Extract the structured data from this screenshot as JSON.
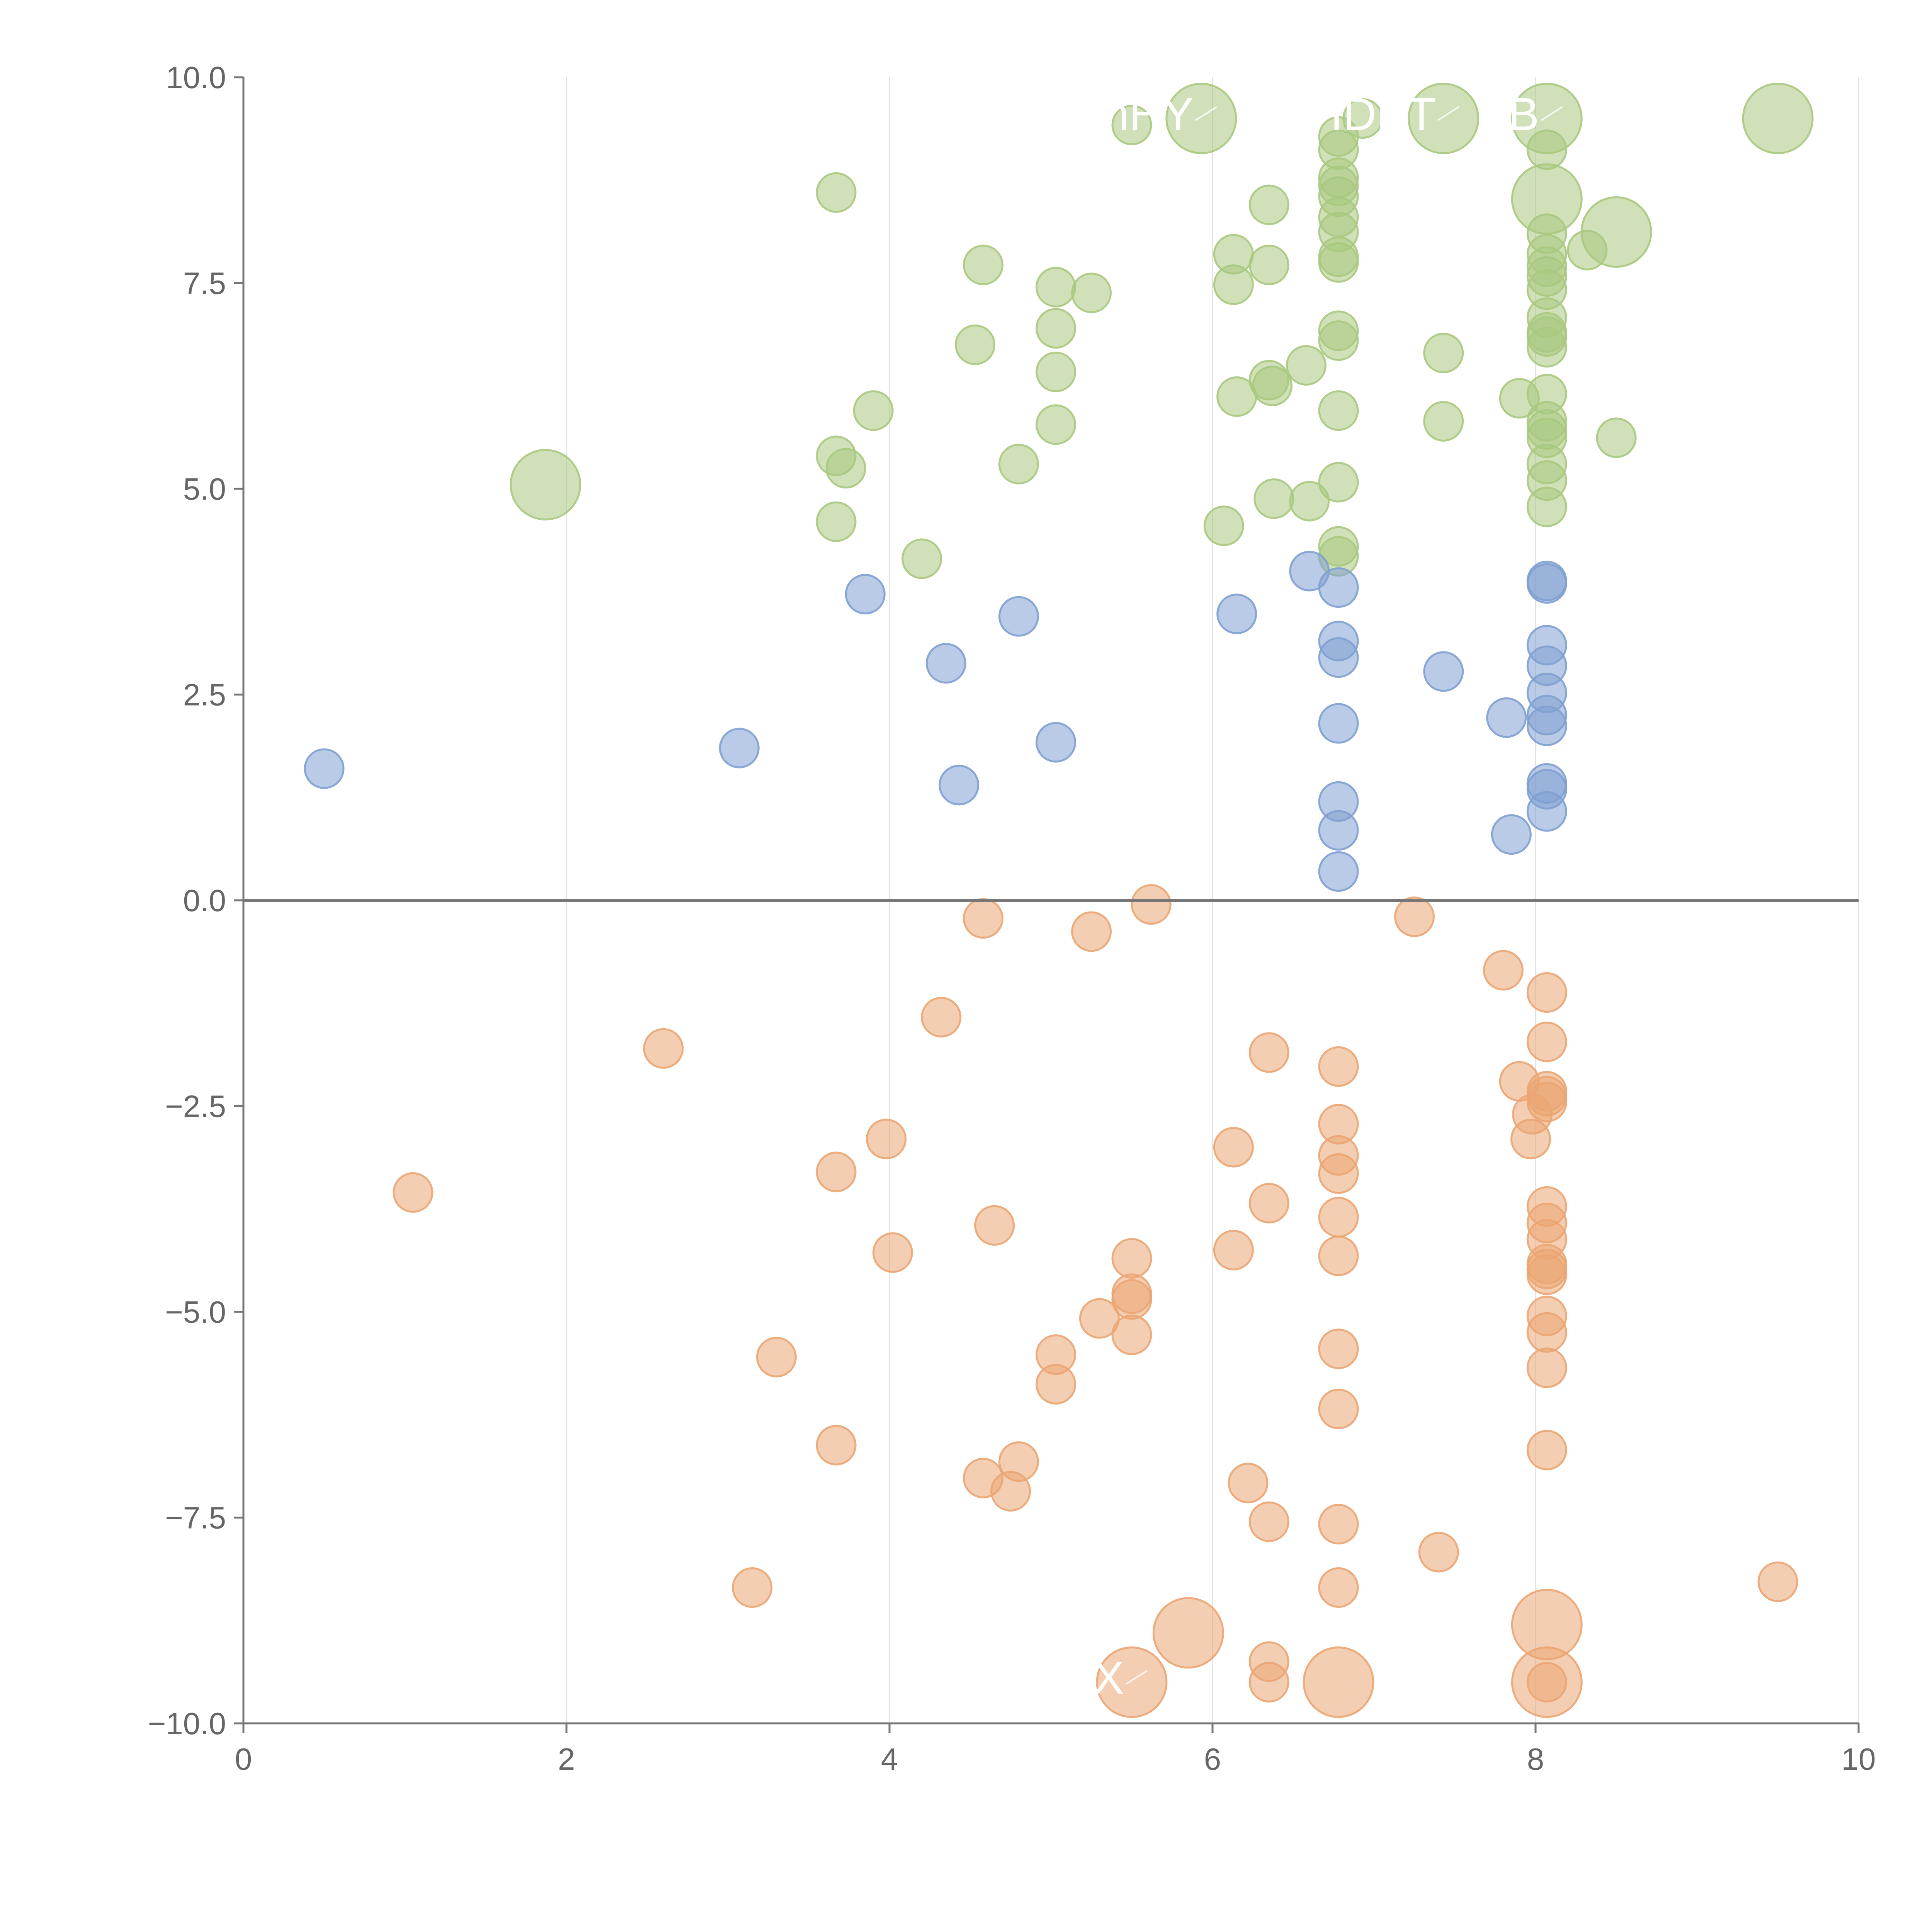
{
  "chart_data": {
    "type": "scatter",
    "title": "",
    "xlabel": "",
    "ylabel": "",
    "xlim": [
      0,
      10
    ],
    "ylim": [
      -10,
      10
    ],
    "x_ticks": [
      "0",
      "2",
      "4",
      "6",
      "8",
      "10"
    ],
    "y_ticks": [
      "10.0",
      "7.5",
      "5.0",
      "2.5",
      "0.0",
      "−2.5",
      "−5.0",
      "−7.5",
      "−10.0"
    ],
    "grid": "vertical lines at x ticks",
    "zero_line": true,
    "colors": {
      "green": "#a9c97f",
      "blue": "#7fa0d2",
      "orange": "#eba572"
    },
    "series": [
      {
        "color_key": "green",
        "points": [
          [
            1.87,
            5.05,
            2
          ],
          [
            3.67,
            8.6,
            1
          ],
          [
            3.67,
            5.4,
            1
          ],
          [
            3.73,
            5.25,
            1
          ],
          [
            3.67,
            4.6,
            1
          ],
          [
            3.9,
            5.95,
            1
          ],
          [
            4.2,
            4.15,
            1
          ],
          [
            4.53,
            6.75,
            1
          ],
          [
            4.58,
            7.72,
            1
          ],
          [
            4.8,
            5.3,
            1
          ],
          [
            5.03,
            7.45,
            1
          ],
          [
            5.03,
            6.95,
            1
          ],
          [
            5.03,
            6.42,
            1
          ],
          [
            5.03,
            5.78,
            1
          ],
          [
            5.25,
            7.38,
            1
          ],
          [
            5.5,
            9.42,
            1
          ],
          [
            5.93,
            9.5,
            2
          ],
          [
            6.07,
            4.55,
            1
          ],
          [
            6.13,
            7.85,
            1
          ],
          [
            6.13,
            7.48,
            1
          ],
          [
            6.15,
            6.12,
            1
          ],
          [
            6.35,
            8.45,
            1
          ],
          [
            6.35,
            7.72,
            1
          ],
          [
            6.35,
            6.32,
            1
          ],
          [
            6.37,
            6.25,
            1
          ],
          [
            6.38,
            4.88,
            1
          ],
          [
            6.58,
            6.5,
            1
          ],
          [
            6.6,
            4.85,
            1
          ],
          [
            6.78,
            9.28,
            1
          ],
          [
            6.78,
            9.12,
            1
          ],
          [
            6.78,
            8.78,
            1
          ],
          [
            6.78,
            8.68,
            1
          ],
          [
            6.78,
            8.55,
            1
          ],
          [
            6.78,
            8.3,
            1
          ],
          [
            6.78,
            8.12,
            1
          ],
          [
            6.78,
            7.82,
            1
          ],
          [
            6.78,
            7.75,
            1
          ],
          [
            6.78,
            6.92,
            1
          ],
          [
            6.78,
            6.8,
            1
          ],
          [
            6.78,
            5.95,
            1
          ],
          [
            6.78,
            5.08,
            1
          ],
          [
            6.78,
            4.3,
            1
          ],
          [
            6.78,
            4.18,
            1
          ],
          [
            6.93,
            9.5,
            1
          ],
          [
            7.43,
            9.5,
            2
          ],
          [
            7.43,
            6.65,
            1
          ],
          [
            7.43,
            5.82,
            1
          ],
          [
            7.9,
            6.1,
            1
          ],
          [
            8.07,
            9.5,
            2
          ],
          [
            8.07,
            9.12,
            1
          ],
          [
            8.07,
            8.52,
            2
          ],
          [
            8.07,
            8.1,
            1
          ],
          [
            8.07,
            7.85,
            1
          ],
          [
            8.07,
            7.7,
            1
          ],
          [
            8.07,
            7.58,
            1
          ],
          [
            8.07,
            7.42,
            1
          ],
          [
            8.07,
            7.08,
            1
          ],
          [
            8.07,
            6.9,
            1
          ],
          [
            8.07,
            6.85,
            1
          ],
          [
            8.07,
            6.72,
            1
          ],
          [
            8.07,
            6.15,
            1
          ],
          [
            8.07,
            5.82,
            1
          ],
          [
            8.07,
            5.72,
            1
          ],
          [
            8.07,
            5.62,
            1
          ],
          [
            8.07,
            5.3,
            1
          ],
          [
            8.07,
            5.1,
            1
          ],
          [
            8.07,
            4.78,
            1
          ],
          [
            8.32,
            7.9,
            1
          ],
          [
            8.5,
            8.12,
            2
          ],
          [
            8.5,
            5.62,
            1
          ],
          [
            9.5,
            9.5,
            2
          ]
        ]
      },
      {
        "color_key": "blue",
        "points": [
          [
            0.5,
            1.6,
            1
          ],
          [
            3.07,
            1.85,
            1
          ],
          [
            3.85,
            3.72,
            1
          ],
          [
            4.35,
            2.88,
            1
          ],
          [
            4.43,
            1.4,
            1
          ],
          [
            4.8,
            3.45,
            1
          ],
          [
            5.03,
            1.92,
            1
          ],
          [
            6.15,
            3.48,
            1
          ],
          [
            6.6,
            4.0,
            1
          ],
          [
            6.78,
            3.8,
            1
          ],
          [
            6.78,
            3.15,
            1
          ],
          [
            6.78,
            2.95,
            1
          ],
          [
            6.78,
            2.15,
            1
          ],
          [
            6.78,
            1.2,
            1
          ],
          [
            6.78,
            0.85,
            1
          ],
          [
            6.78,
            0.35,
            1
          ],
          [
            7.43,
            2.78,
            1
          ],
          [
            7.82,
            2.22,
            1
          ],
          [
            7.85,
            0.8,
            1
          ],
          [
            8.07,
            3.88,
            1
          ],
          [
            8.07,
            3.85,
            1
          ],
          [
            8.07,
            3.1,
            1
          ],
          [
            8.07,
            2.85,
            1
          ],
          [
            8.07,
            2.52,
            1
          ],
          [
            8.07,
            2.25,
            1
          ],
          [
            8.07,
            2.12,
            1
          ],
          [
            8.07,
            1.42,
            1
          ],
          [
            8.07,
            1.35,
            1
          ],
          [
            8.07,
            1.08,
            1
          ]
        ]
      },
      {
        "color_key": "orange",
        "points": [
          [
            1.05,
            -3.55,
            1
          ],
          [
            2.6,
            -1.8,
            1
          ],
          [
            3.15,
            -8.35,
            1
          ],
          [
            3.3,
            -5.55,
            1
          ],
          [
            3.67,
            -3.3,
            1
          ],
          [
            3.67,
            -6.62,
            1
          ],
          [
            3.98,
            -2.9,
            1
          ],
          [
            4.02,
            -4.28,
            1
          ],
          [
            4.32,
            -1.42,
            1
          ],
          [
            4.58,
            -0.22,
            1
          ],
          [
            4.58,
            -7.02,
            1
          ],
          [
            4.65,
            -3.95,
            1
          ],
          [
            4.75,
            -7.18,
            1
          ],
          [
            4.8,
            -6.82,
            1
          ],
          [
            5.03,
            -5.52,
            1
          ],
          [
            5.03,
            -5.88,
            1
          ],
          [
            5.25,
            -0.38,
            1
          ],
          [
            5.3,
            -5.08,
            1
          ],
          [
            5.5,
            -4.35,
            1
          ],
          [
            5.5,
            -4.78,
            1
          ],
          [
            5.5,
            -4.85,
            1
          ],
          [
            5.5,
            -5.28,
            1
          ],
          [
            5.5,
            -9.5,
            2
          ],
          [
            5.62,
            -0.05,
            1
          ],
          [
            5.85,
            -8.9,
            2
          ],
          [
            6.13,
            -3.0,
            1
          ],
          [
            6.13,
            -4.25,
            1
          ],
          [
            6.22,
            -7.08,
            1
          ],
          [
            6.35,
            -1.85,
            1
          ],
          [
            6.35,
            -3.68,
            1
          ],
          [
            6.35,
            -7.55,
            1
          ],
          [
            6.35,
            -9.25,
            1
          ],
          [
            6.35,
            -9.5,
            1
          ],
          [
            6.78,
            -2.02,
            1
          ],
          [
            6.78,
            -2.72,
            1
          ],
          [
            6.78,
            -3.1,
            1
          ],
          [
            6.78,
            -3.32,
            1
          ],
          [
            6.78,
            -3.85,
            1
          ],
          [
            6.78,
            -4.32,
            1
          ],
          [
            6.78,
            -5.45,
            1
          ],
          [
            6.78,
            -6.18,
            1
          ],
          [
            6.78,
            -7.58,
            1
          ],
          [
            6.78,
            -8.35,
            1
          ],
          [
            6.78,
            -9.5,
            2
          ],
          [
            7.25,
            -0.2,
            1
          ],
          [
            7.4,
            -7.92,
            1
          ],
          [
            7.8,
            -0.85,
            1
          ],
          [
            7.9,
            -2.2,
            1
          ],
          [
            7.98,
            -2.6,
            1
          ],
          [
            7.97,
            -2.9,
            1
          ],
          [
            8.07,
            -1.12,
            1
          ],
          [
            8.07,
            -1.72,
            1
          ],
          [
            8.07,
            -2.32,
            1
          ],
          [
            8.07,
            -2.38,
            1
          ],
          [
            8.07,
            -2.45,
            1
          ],
          [
            8.07,
            -3.72,
            1
          ],
          [
            8.07,
            -3.92,
            1
          ],
          [
            8.07,
            -4.12,
            1
          ],
          [
            8.07,
            -4.42,
            1
          ],
          [
            8.07,
            -4.48,
            1
          ],
          [
            8.07,
            -4.55,
            1
          ],
          [
            8.07,
            -5.05,
            1
          ],
          [
            8.07,
            -5.25,
            1
          ],
          [
            8.07,
            -5.68,
            1
          ],
          [
            8.07,
            -6.68,
            1
          ],
          [
            8.07,
            -8.8,
            2
          ],
          [
            8.07,
            -9.5,
            2
          ],
          [
            8.07,
            -9.5,
            1
          ],
          [
            9.5,
            -8.28,
            1
          ]
        ]
      }
    ],
    "annotations": [
      {
        "text": "IDPT",
        "x": 7.43,
        "y": 9.5
      },
      {
        "text": "B",
        "x": 8.07,
        "y": 9.5
      },
      {
        "text": "hHY",
        "x": 5.93,
        "y": 9.5
      },
      {
        "text": "DTX",
        "x": 5.5,
        "y": -9.5
      }
    ]
  }
}
